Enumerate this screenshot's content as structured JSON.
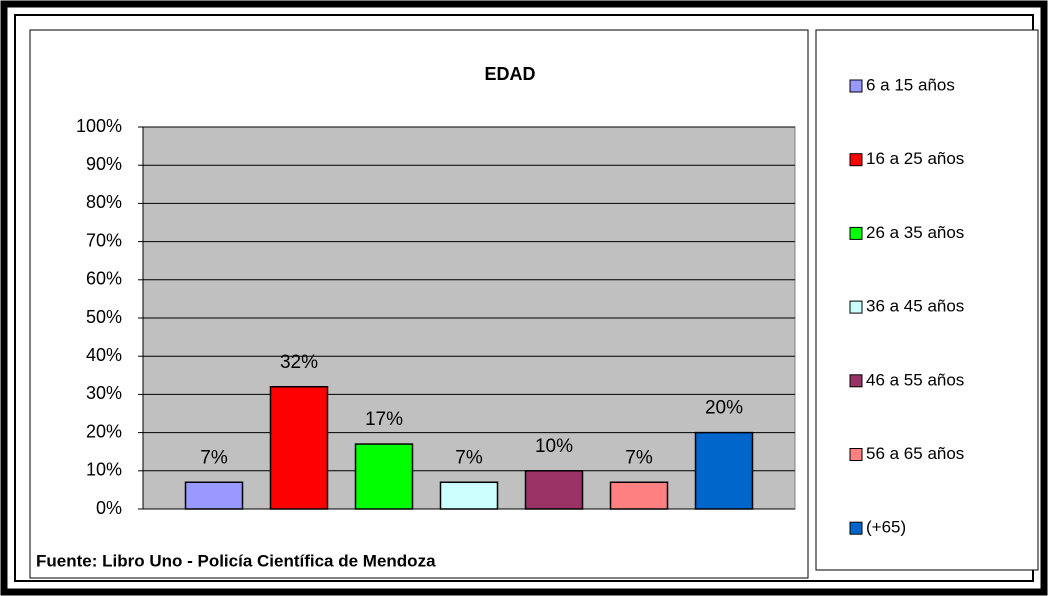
{
  "chart_data": {
    "type": "bar",
    "title": "EDAD",
    "source": "Fuente: Libro Uno - Policía Científica de Mendoza",
    "series": [
      {
        "name": "6 a 15 años",
        "color": "#9999ff",
        "values": [
          7
        ],
        "value_labels": [
          "7%"
        ]
      },
      {
        "name": "16 a 25 años",
        "color": "#ff0000",
        "values": [
          32
        ],
        "value_labels": [
          "32%"
        ]
      },
      {
        "name": "26 a 35 años",
        "color": "#00ff00",
        "values": [
          17
        ],
        "value_labels": [
          "17%"
        ]
      },
      {
        "name": "36 a 45 años",
        "color": "#ccffff",
        "values": [
          7
        ],
        "value_labels": [
          "7%"
        ]
      },
      {
        "name": "46 a 55 años",
        "color": "#993366",
        "values": [
          10
        ],
        "value_labels": [
          "10%"
        ]
      },
      {
        "name": "56 a 65 años",
        "color": "#ff8080",
        "values": [
          7
        ],
        "value_labels": [
          "7%"
        ]
      },
      {
        "name": "(+65)",
        "color": "#0066cc",
        "values": [
          20
        ],
        "value_labels": [
          "20%"
        ]
      }
    ],
    "ylim": [
      0,
      100
    ],
    "yticks": [
      {
        "value": 0,
        "label": "0%"
      },
      {
        "value": 10,
        "label": "10%"
      },
      {
        "value": 20,
        "label": "20%"
      },
      {
        "value": 30,
        "label": "30%"
      },
      {
        "value": 40,
        "label": "40%"
      },
      {
        "value": 50,
        "label": "50%"
      },
      {
        "value": 60,
        "label": "60%"
      },
      {
        "value": 70,
        "label": "70%"
      },
      {
        "value": 80,
        "label": "80%"
      },
      {
        "value": 90,
        "label": "90%"
      },
      {
        "value": 100,
        "label": "100%"
      }
    ],
    "grid": true,
    "legend": "right"
  }
}
